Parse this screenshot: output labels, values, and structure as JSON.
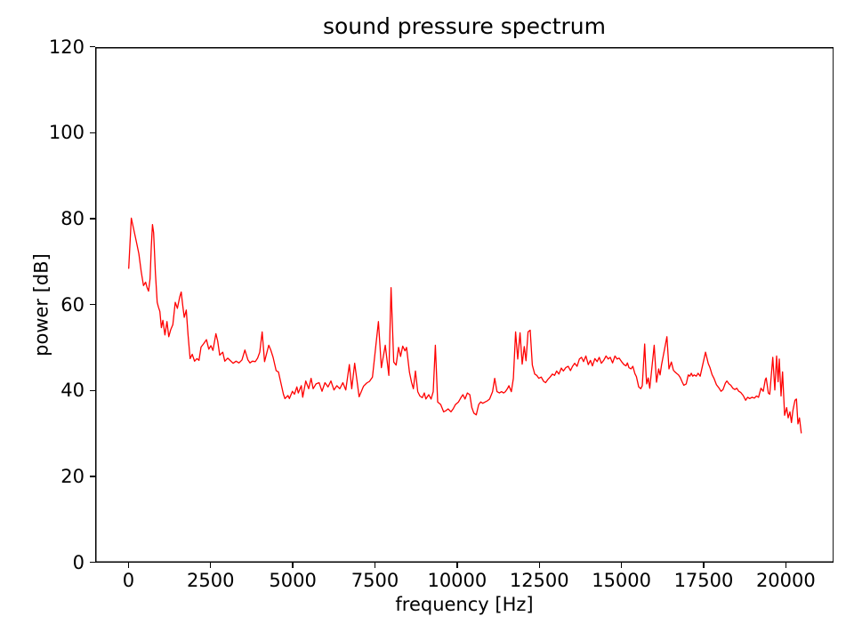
{
  "title": "sound pressure spectrum",
  "chart_data": {
    "type": "line",
    "title": "sound pressure spectrum",
    "xlabel": "frequency [Hz]",
    "ylabel": "power [dB]",
    "xlim": [
      -1020,
      21460
    ],
    "ylim": [
      0,
      120
    ],
    "x_ticks": [
      0,
      2500,
      5000,
      7500,
      10000,
      12500,
      15000,
      17500,
      20000
    ],
    "y_ticks": [
      0,
      20,
      40,
      60,
      80,
      100,
      120
    ],
    "grid": false,
    "legend_position": "none",
    "background_color": "#ffffff",
    "spine_color": "#000000",
    "series": [
      {
        "name": "sound pressure spectrum",
        "color": "#ff0000",
        "x": [
          0,
          80,
          155,
          245,
          310,
          380,
          450,
          515,
          560,
          605,
          650,
          687,
          722,
          758,
          812,
          866,
          903,
          948,
          993,
          1039,
          1101,
          1164,
          1218,
          1281,
          1344,
          1417,
          1480,
          1553,
          1598,
          1642,
          1689,
          1751,
          1805,
          1867,
          1932,
          2003,
          2075,
          2138,
          2202,
          2273,
          2365,
          2436,
          2500,
          2563,
          2652,
          2706,
          2770,
          2860,
          2922,
          3013,
          3084,
          3176,
          3266,
          3355,
          3447,
          3536,
          3626,
          3690,
          3761,
          3852,
          3923,
          3988,
          4060,
          4132,
          4259,
          4322,
          4394,
          4484,
          4556,
          4708,
          4753,
          4844,
          4889,
          4979,
          5043,
          5115,
          5160,
          5250,
          5295,
          5385,
          5476,
          5548,
          5611,
          5701,
          5792,
          5882,
          5972,
          6063,
          6153,
          6243,
          6334,
          6424,
          6514,
          6605,
          6713,
          6785,
          6876,
          7011,
          7146,
          7237,
          7327,
          7417,
          7598,
          7688,
          7806,
          7914,
          7983,
          8064,
          8137,
          8209,
          8272,
          8335,
          8407,
          8452,
          8543,
          8606,
          8660,
          8723,
          8795,
          8859,
          8931,
          8994,
          9039,
          9129,
          9201,
          9265,
          9330,
          9400,
          9491,
          9581,
          9653,
          9716,
          9807,
          9870,
          9942,
          10032,
          10105,
          10168,
          10231,
          10303,
          10376,
          10439,
          10502,
          10574,
          10647,
          10710,
          10773,
          10845,
          10917,
          10981,
          11071,
          11134,
          11206,
          11279,
          11342,
          11405,
          11459,
          11522,
          11568,
          11640,
          11703,
          11771,
          11836,
          11907,
          11970,
          12033,
          12087,
          12150,
          12215,
          12280,
          12352,
          12415,
          12478,
          12551,
          12623,
          12684,
          12748,
          12820,
          12892,
          12955,
          13018,
          13090,
          13162,
          13225,
          13297,
          13369,
          13441,
          13504,
          13569,
          13640,
          13712,
          13775,
          13838,
          13910,
          13983,
          14046,
          14109,
          14181,
          14253,
          14316,
          14379,
          14451,
          14524,
          14587,
          14650,
          14722,
          14795,
          14858,
          14921,
          14993,
          15066,
          15129,
          15174,
          15219,
          15282,
          15337,
          15400,
          15445,
          15517,
          15580,
          15625,
          15697,
          15740,
          15761,
          15806,
          15851,
          15987,
          16059,
          16122,
          16167,
          16212,
          16375,
          16438,
          16510,
          16573,
          16619,
          16664,
          16727,
          16781,
          16844,
          16889,
          16962,
          17025,
          17070,
          17115,
          17160,
          17205,
          17269,
          17323,
          17386,
          17549,
          17630,
          17684,
          17748,
          17811,
          17883,
          17955,
          18019,
          18082,
          18154,
          18199,
          18263,
          18317,
          18380,
          18443,
          18498,
          18561,
          18624,
          18697,
          18769,
          18832,
          18895,
          18963,
          19036,
          19099,
          19162,
          19234,
          19306,
          19369,
          19396,
          19459,
          19504,
          19594,
          19657,
          19712,
          19757,
          19793,
          19847,
          19892,
          19955,
          20018,
          20064,
          20118,
          20163,
          20208,
          20271,
          20316,
          20362,
          20407,
          20461
        ],
        "y": [
          68.5,
          80.2,
          77.5,
          74.3,
          71.9,
          67.8,
          64.5,
          65.3,
          64.0,
          63.2,
          66.1,
          73.7,
          78.7,
          76.8,
          67.4,
          60.6,
          59.5,
          58.5,
          54.7,
          56.4,
          53.0,
          56.1,
          52.6,
          54.3,
          55.4,
          60.6,
          59.2,
          61.9,
          63.0,
          59.9,
          57.1,
          58.8,
          53.0,
          47.5,
          48.5,
          46.9,
          47.5,
          47.1,
          50.2,
          50.9,
          51.9,
          49.7,
          50.5,
          49.4,
          53.3,
          51.6,
          48.3,
          49.0,
          46.9,
          47.6,
          47.1,
          46.4,
          46.9,
          46.5,
          47.2,
          49.5,
          47.2,
          46.5,
          46.9,
          46.8,
          47.6,
          49.0,
          53.7,
          46.8,
          50.6,
          49.5,
          47.8,
          44.7,
          44.4,
          39.2,
          38.2,
          38.9,
          38.2,
          39.9,
          39.2,
          40.9,
          39.5,
          41.2,
          38.5,
          42.3,
          40.5,
          42.9,
          40.5,
          41.6,
          41.9,
          39.9,
          41.9,
          40.9,
          42.3,
          40.2,
          41.2,
          40.5,
          41.9,
          40.2,
          46.1,
          40.5,
          46.4,
          38.6,
          41.1,
          41.8,
          42.2,
          43.2,
          56.1,
          45.4,
          50.6,
          43.6,
          64.0,
          46.7,
          46.0,
          50.1,
          48.0,
          50.4,
          49.3,
          50.1,
          44.3,
          41.9,
          40.5,
          44.6,
          39.8,
          38.8,
          38.4,
          39.5,
          38.1,
          39.1,
          38.1,
          39.8,
          50.6,
          37.4,
          36.8,
          35.1,
          35.4,
          35.8,
          35.1,
          35.8,
          36.8,
          37.4,
          38.4,
          39.1,
          38.1,
          39.5,
          39.1,
          36.1,
          34.8,
          34.4,
          36.8,
          37.4,
          37.1,
          37.4,
          37.7,
          38.1,
          39.8,
          42.9,
          39.8,
          39.5,
          39.8,
          39.5,
          39.8,
          40.5,
          41.2,
          39.8,
          42.9,
          53.7,
          47.4,
          53.5,
          46.2,
          50.3,
          47.0,
          53.7,
          54.1,
          46.0,
          43.9,
          43.6,
          42.9,
          43.2,
          42.2,
          41.9,
          42.6,
          43.2,
          43.9,
          43.6,
          44.6,
          43.9,
          45.3,
          44.6,
          45.4,
          45.7,
          44.7,
          45.7,
          46.4,
          45.7,
          47.4,
          47.8,
          46.8,
          48.1,
          46.1,
          47.1,
          45.8,
          47.5,
          46.8,
          47.8,
          46.4,
          47.1,
          48.1,
          47.4,
          47.8,
          46.5,
          48.1,
          47.4,
          47.6,
          46.8,
          46.1,
          45.8,
          46.5,
          45.4,
          45.1,
          45.7,
          44.0,
          43.3,
          40.9,
          40.5,
          41.2,
          50.9,
          43.7,
          41.6,
          43.0,
          40.6,
          50.6,
          42.0,
          45.1,
          43.7,
          46.1,
          52.6,
          45.1,
          46.7,
          44.8,
          44.4,
          44.1,
          43.7,
          43.1,
          42.0,
          41.3,
          41.6,
          43.7,
          43.4,
          44.1,
          43.4,
          43.7,
          43.4,
          44.1,
          43.4,
          49.0,
          46.4,
          45.4,
          43.8,
          42.8,
          41.4,
          40.7,
          39.9,
          40.3,
          41.8,
          42.3,
          41.6,
          41.3,
          40.6,
          40.3,
          40.6,
          39.9,
          39.6,
          38.9,
          37.8,
          38.5,
          38.2,
          38.5,
          38.3,
          38.8,
          38.5,
          40.6,
          39.9,
          42.6,
          43.0,
          39.5,
          39.2,
          47.8,
          40.2,
          48.1,
          42.1,
          47.4,
          38.8,
          44.4,
          34.3,
          36.1,
          33.7,
          35.1,
          32.6,
          35.4,
          37.8,
          38.1,
          32.3,
          33.7,
          30.2
        ]
      }
    ]
  }
}
